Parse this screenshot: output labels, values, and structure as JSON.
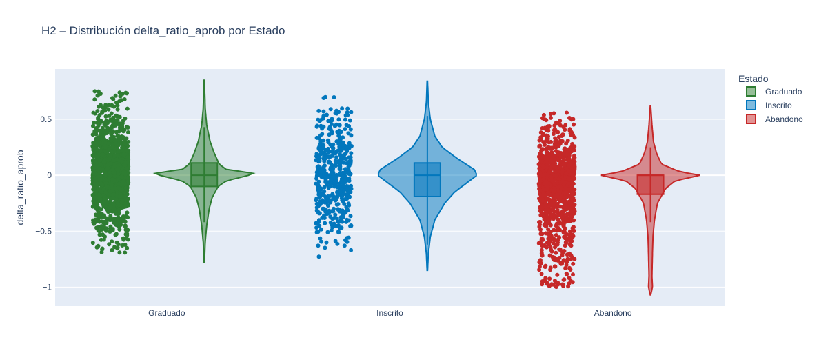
{
  "chart_data": {
    "type": "violin",
    "title": "H2 – Distribución delta_ratio_aprob por Estado",
    "xlabel": "",
    "ylabel": "delta_ratio_aprob",
    "ylim": [
      -1.17,
      0.95
    ],
    "yticks": [
      0.5,
      0,
      -0.5,
      -1
    ],
    "ytick_labels": [
      "0.5",
      "0",
      "−0.5",
      "−1"
    ],
    "grid": true,
    "legend": {
      "title": "Estado",
      "placement": "top-right"
    },
    "categories": [
      "Graduado",
      "Inscrito",
      "Abandono"
    ],
    "series": [
      {
        "name": "Graduado",
        "color": "#2e7d32",
        "fill": "#2e7d32",
        "min": -0.78,
        "max": 0.85,
        "q1": -0.1,
        "median": 0.0,
        "q3": 0.11,
        "whisker_low": -0.42,
        "whisker_high": 0.43,
        "points_range": [
          -0.7,
          0.77
        ],
        "points_count": 1400,
        "density": [
          [
            -0.78,
            0.005
          ],
          [
            -0.6,
            0.02
          ],
          [
            -0.45,
            0.05
          ],
          [
            -0.3,
            0.1
          ],
          [
            -0.2,
            0.16
          ],
          [
            -0.1,
            0.28
          ],
          [
            -0.05,
            0.45
          ],
          [
            0,
            0.9
          ],
          [
            0.02,
            1.0
          ],
          [
            0.05,
            0.45
          ],
          [
            0.1,
            0.3
          ],
          [
            0.2,
            0.2
          ],
          [
            0.3,
            0.12
          ],
          [
            0.45,
            0.05
          ],
          [
            0.6,
            0.02
          ],
          [
            0.85,
            0.005
          ]
        ]
      },
      {
        "name": "Inscrito",
        "color": "#0277bd",
        "fill": "#0277bd",
        "min": -0.85,
        "max": 0.84,
        "q1": -0.19,
        "median": 0.0,
        "q3": 0.11,
        "whisker_low": -0.62,
        "whisker_high": 0.53,
        "points_range": [
          -0.73,
          0.71
        ],
        "points_count": 500,
        "density": [
          [
            -0.85,
            0.005
          ],
          [
            -0.7,
            0.02
          ],
          [
            -0.55,
            0.06
          ],
          [
            -0.4,
            0.15
          ],
          [
            -0.25,
            0.35
          ],
          [
            -0.15,
            0.55
          ],
          [
            -0.05,
            0.85
          ],
          [
            0,
            1.0
          ],
          [
            0.05,
            0.95
          ],
          [
            0.15,
            0.6
          ],
          [
            0.25,
            0.3
          ],
          [
            0.35,
            0.15
          ],
          [
            0.5,
            0.06
          ],
          [
            0.65,
            0.02
          ],
          [
            0.84,
            0.005
          ]
        ]
      },
      {
        "name": "Abandono",
        "color": "#c62828",
        "fill": "#c62828",
        "min": -1.07,
        "max": 0.62,
        "q1": -0.17,
        "median": 0.0,
        "q3": 0.0,
        "whisker_low": -0.42,
        "whisker_high": 0.25,
        "points_range": [
          -1.0,
          0.56
        ],
        "points_count": 1100,
        "density": [
          [
            -1.07,
            0.005
          ],
          [
            -1.0,
            0.04
          ],
          [
            -0.9,
            0.03
          ],
          [
            -0.7,
            0.04
          ],
          [
            -0.55,
            0.05
          ],
          [
            -0.4,
            0.08
          ],
          [
            -0.25,
            0.14
          ],
          [
            -0.12,
            0.3
          ],
          [
            -0.05,
            0.5
          ],
          [
            0,
            1.0
          ],
          [
            0.03,
            0.6
          ],
          [
            0.1,
            0.22
          ],
          [
            0.2,
            0.12
          ],
          [
            0.3,
            0.06
          ],
          [
            0.45,
            0.03
          ],
          [
            0.62,
            0.005
          ]
        ]
      }
    ]
  }
}
